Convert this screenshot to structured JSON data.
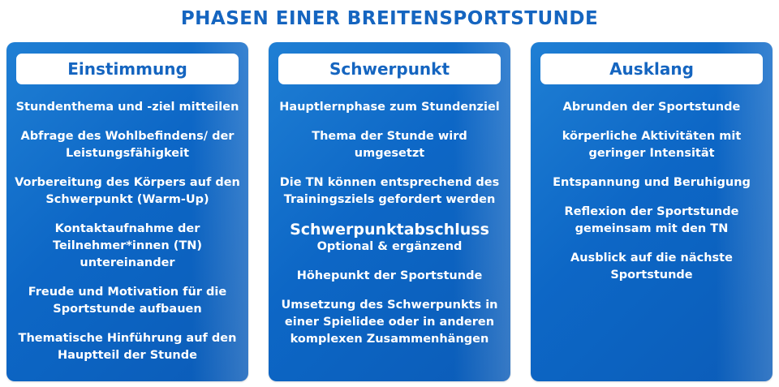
{
  "title": "PHASEN EINER BREITENSPORTSTUNDE",
  "colors": {
    "primary": "#1565c0",
    "card_top": "#1f7fd4",
    "card_bottom": "#0b5cb8"
  },
  "columns": [
    {
      "header": "Einstimmung",
      "items": [
        "Stundenthema und -ziel mitteilen",
        "Abfrage des Wohlbefindens/ der\nLeistungsfähigkeit",
        "Vorbereitung des Körpers auf den\nSchwerpunkt (Warm-Up)",
        "Kontaktaufnahme der\nTeilnehmer*innen (TN)\nuntereinander",
        "Freude und Motivation für die\nSportstunde aufbauen",
        "Thematische Hinführung auf den\nHauptteil der Stunde"
      ]
    },
    {
      "header": "Schwerpunkt",
      "items": [
        "Hauptlernphase zum Stundenziel",
        "Thema der Stunde wird umgesetzt",
        "Die TN können entsprechend des\nTrainingsziels gefordert werden"
      ],
      "highlight": {
        "title": "Schwerpunktabschluss",
        "subtitle": "Optional & ergänzend"
      },
      "items_after": [
        "Höhepunkt der Sportstunde",
        "Umsetzung des Schwerpunkts in\neiner Spielidee oder in anderen\nkomplexen Zusammenhängen"
      ]
    },
    {
      "header": "Ausklang",
      "items": [
        "Abrunden der Sportstunde",
        "körperliche Aktivitäten mit\ngeringer Intensität",
        "Entspannung und Beruhigung",
        "Reflexion der Sportstunde\ngemeinsam mit den TN",
        "Ausblick auf die nächste\nSportstunde"
      ]
    }
  ]
}
